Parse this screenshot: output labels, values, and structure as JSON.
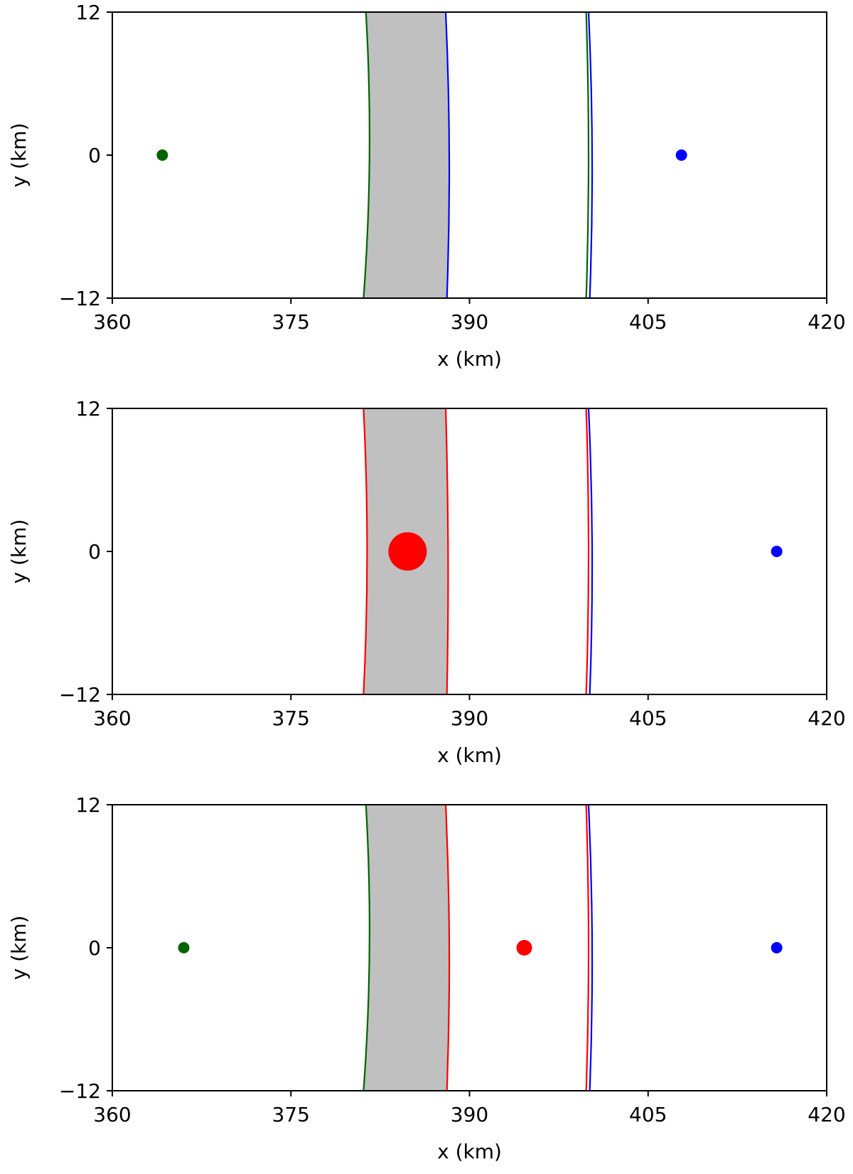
{
  "chart_data": [
    {
      "type": "scatter",
      "xlabel": "x (km)",
      "ylabel": "y (km)",
      "xlim": [
        360,
        420
      ],
      "ylim": [
        -12,
        12
      ],
      "xticks": [
        "360",
        "375",
        "390",
        "405",
        "420"
      ],
      "yticks": [
        "12",
        "0",
        "−12"
      ],
      "grid": false,
      "band": {
        "fill": "#c0c0c0",
        "left": 381.1,
        "right": 388.1,
        "top_left": 381.3,
        "top_right": 388.0
      },
      "lines": [
        {
          "color": "#006400",
          "x_top": 381.3,
          "x_mid": 381.6,
          "x_bottom": 381.1
        },
        {
          "color": "#0000ff",
          "x_top": 388.0,
          "x_mid": 388.3,
          "x_bottom": 388.1
        },
        {
          "color": "#006400",
          "x_top": 399.8,
          "x_mid": 400.0,
          "x_bottom": 399.8
        },
        {
          "color": "#0000ff",
          "x_top": 400.0,
          "x_mid": 400.3,
          "x_bottom": 400.1
        }
      ],
      "points": [
        {
          "x": 364.2,
          "y": 0,
          "color": "#006400",
          "size": "small"
        },
        {
          "x": 407.8,
          "y": 0,
          "color": "#0000ff",
          "size": "small"
        }
      ]
    },
    {
      "type": "scatter",
      "xlabel": "x (km)",
      "ylabel": "y (km)",
      "xlim": [
        360,
        420
      ],
      "ylim": [
        -12,
        12
      ],
      "xticks": [
        "360",
        "375",
        "390",
        "405",
        "420"
      ],
      "yticks": [
        "12",
        "0",
        "−12"
      ],
      "grid": false,
      "band": {
        "fill": "#c0c0c0",
        "left": 381.1,
        "right": 388.1,
        "top_left": 381.3,
        "top_right": 388.0
      },
      "lines": [
        {
          "color": "#ff0000",
          "x_top": 381.1,
          "x_mid": 381.4,
          "x_bottom": 381.1
        },
        {
          "color": "#ff0000",
          "x_top": 388.0,
          "x_mid": 388.2,
          "x_bottom": 388.1
        },
        {
          "color": "#ff0000",
          "x_top": 399.8,
          "x_mid": 400.0,
          "x_bottom": 399.8
        },
        {
          "color": "#0000ff",
          "x_top": 400.0,
          "x_mid": 400.3,
          "x_bottom": 400.1
        }
      ],
      "points": [
        {
          "x": 384.8,
          "y": 0,
          "color": "#ff0000",
          "size": "large"
        },
        {
          "x": 415.8,
          "y": 0,
          "color": "#0000ff",
          "size": "small"
        }
      ]
    },
    {
      "type": "scatter",
      "xlabel": "x (km)",
      "ylabel": "y (km)",
      "xlim": [
        360,
        420
      ],
      "ylim": [
        -12,
        12
      ],
      "xticks": [
        "360",
        "375",
        "390",
        "405",
        "420"
      ],
      "yticks": [
        "12",
        "0",
        "−12"
      ],
      "grid": false,
      "band": {
        "fill": "#c0c0c0",
        "left": 381.1,
        "right": 388.1,
        "top_left": 381.3,
        "top_right": 388.0
      },
      "lines": [
        {
          "color": "#006400",
          "x_top": 381.3,
          "x_mid": 381.6,
          "x_bottom": 381.1
        },
        {
          "color": "#ff0000",
          "x_top": 388.0,
          "x_mid": 388.3,
          "x_bottom": 388.1
        },
        {
          "color": "#ff0000",
          "x_top": 399.8,
          "x_mid": 400.0,
          "x_bottom": 399.8
        },
        {
          "color": "#0000ff",
          "x_top": 400.0,
          "x_mid": 400.3,
          "x_bottom": 400.1
        }
      ],
      "points": [
        {
          "x": 366.0,
          "y": 0,
          "color": "#006400",
          "size": "small"
        },
        {
          "x": 394.6,
          "y": 0,
          "color": "#ff0000",
          "size": "medium"
        },
        {
          "x": 415.8,
          "y": 0,
          "color": "#0000ff",
          "size": "small"
        }
      ]
    }
  ]
}
